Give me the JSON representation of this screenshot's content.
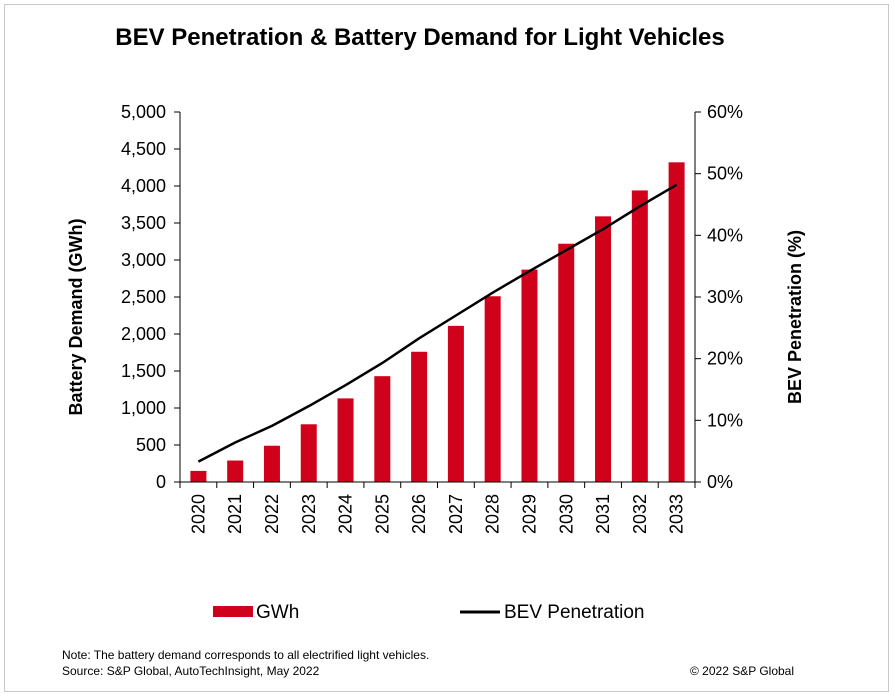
{
  "chart_data": {
    "type": "bar",
    "title": "BEV Penetration & Battery Demand for Light Vehicles",
    "categories": [
      "2020",
      "2021",
      "2022",
      "2023",
      "2024",
      "2025",
      "2026",
      "2027",
      "2028",
      "2029",
      "2030",
      "2031",
      "2032",
      "2033"
    ],
    "series": [
      {
        "name": "GWh",
        "type": "bar",
        "axis": "left",
        "color": "#d0021b",
        "values": [
          150,
          290,
          490,
          780,
          1130,
          1430,
          1760,
          2110,
          2510,
          2870,
          3220,
          3590,
          3940,
          4320
        ]
      },
      {
        "name": "BEV Penetration",
        "type": "line",
        "axis": "right",
        "color": "#000000",
        "values": [
          3.3,
          6.4,
          9.1,
          12.3,
          15.7,
          19.3,
          23.3,
          27.0,
          30.7,
          34.2,
          37.6,
          41.0,
          44.7,
          48.2
        ]
      }
    ],
    "ylabel": "Battery Demand (GWh)",
    "y2label": "BEV Penetration (%)",
    "ylim": [
      0,
      5000
    ],
    "y2lim": [
      0,
      60
    ],
    "yticks": [
      "0",
      "500",
      "1,000",
      "1,500",
      "2,000",
      "2,500",
      "3,000",
      "3,500",
      "4,000",
      "4,500",
      "5,000"
    ],
    "y2ticks": [
      "0%",
      "10%",
      "20%",
      "30%",
      "40%",
      "50%",
      "60%"
    ],
    "grid": false,
    "legend_position": "bottom"
  },
  "footer": {
    "note": "Note: The battery demand corresponds to all electrified light vehicles.",
    "source": "Source: S&P Global,  AutoTechInsight, May 2022",
    "copyright": "© 2022 S&P Global"
  }
}
